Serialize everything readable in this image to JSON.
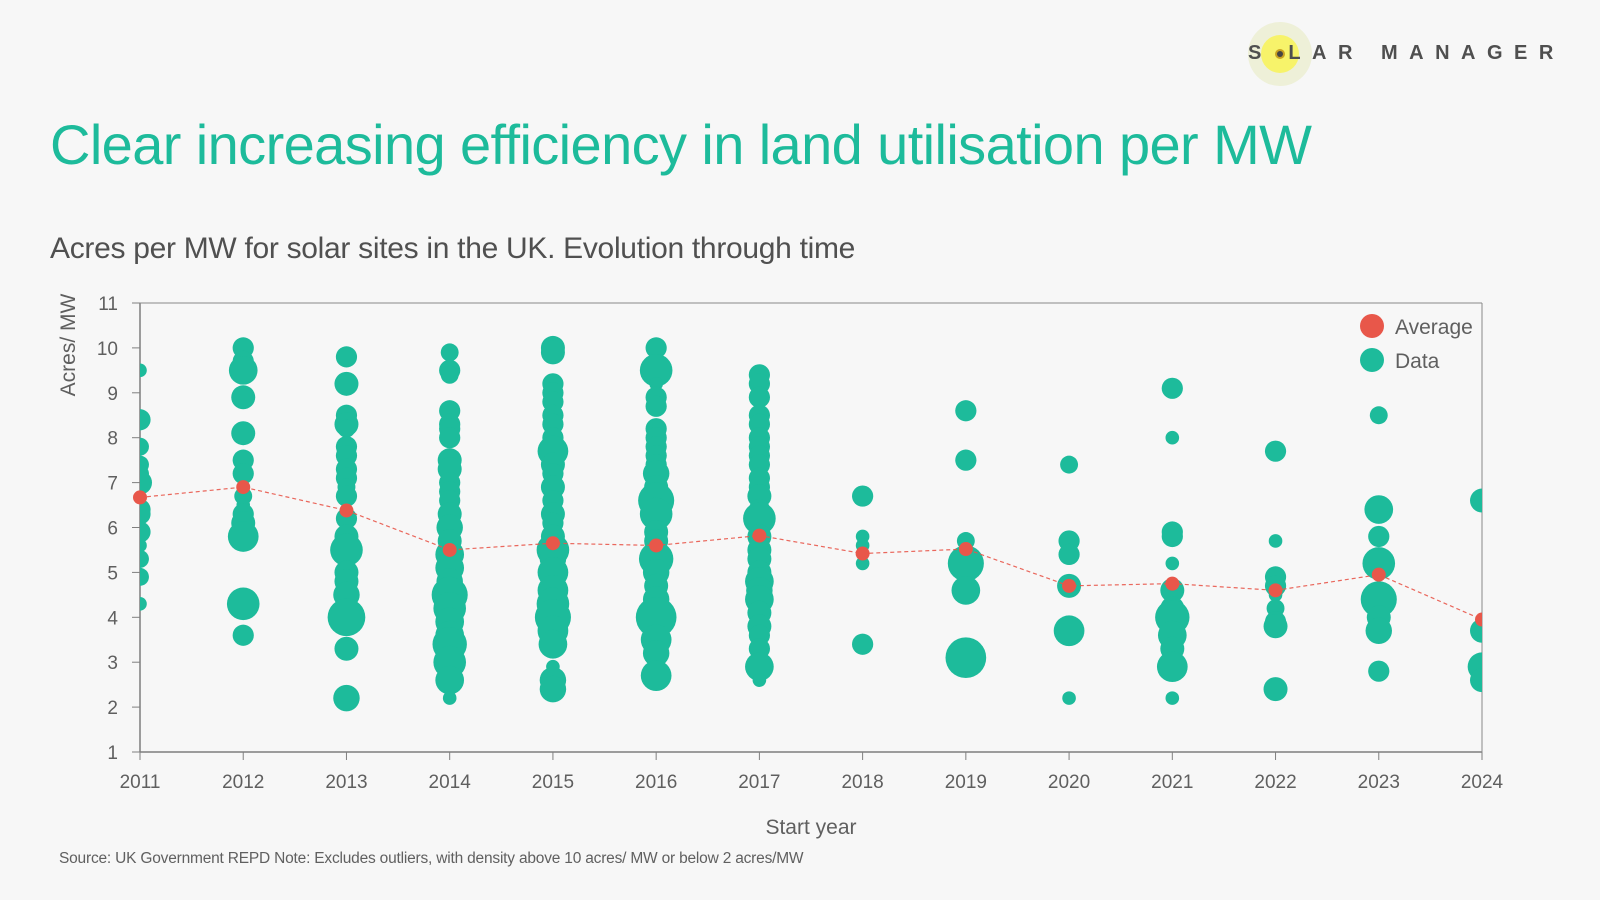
{
  "brand": {
    "logo_text": "S LAR MANAGER",
    "logo_text_full": "SOLAR MANAGER"
  },
  "header": {
    "title": "Clear increasing efficiency in land utilisation per MW",
    "subtitle": "Acres per MW for solar sites in the UK. Evolution through time"
  },
  "footer": {
    "source": "Source: UK Government REPD Note: Excludes outliers, with density above 10 acres/ MW or  below 2 acres/MW"
  },
  "colors": {
    "accent": "#1dbb9b",
    "average": "#e8574a",
    "text": "#5f5f5f",
    "axis": "#7f7f7f"
  },
  "chart_data": {
    "type": "scatter",
    "title": "Acres per MW for solar sites in the UK. Evolution through time",
    "xlabel": "Start year",
    "ylabel": "Acres/ MW",
    "xlim": [
      2011,
      2024
    ],
    "ylim": [
      1,
      11
    ],
    "x_ticks": [
      "2011",
      "2012",
      "2013",
      "2014",
      "2015",
      "2016",
      "2017",
      "2018",
      "2019",
      "2020",
      "2021",
      "2022",
      "2023",
      "2024"
    ],
    "y_ticks": [
      "1",
      "2",
      "3",
      "4",
      "5",
      "6",
      "7",
      "8",
      "9",
      "10",
      "11"
    ],
    "grid": false,
    "legend": {
      "position": "top-right",
      "entries": [
        "Average",
        "Data"
      ]
    },
    "series": [
      {
        "name": "Average",
        "kind": "line-dashed-with-markers",
        "points": [
          [
            2011,
            6.67
          ],
          [
            2012,
            6.9
          ],
          [
            2013,
            6.38
          ],
          [
            2014,
            5.5
          ],
          [
            2015,
            5.65
          ],
          [
            2016,
            5.6
          ],
          [
            2017,
            5.82
          ],
          [
            2018,
            5.42
          ],
          [
            2019,
            5.52
          ],
          [
            2020,
            4.7
          ],
          [
            2021,
            4.75
          ],
          [
            2022,
            4.6
          ],
          [
            2023,
            4.95
          ],
          [
            2024,
            3.95
          ]
        ]
      },
      {
        "name": "Data",
        "kind": "bubble",
        "size_note": "bubble area relative to site capacity (relative units)",
        "points": [
          [
            2011,
            9.5,
            1
          ],
          [
            2011,
            8.4,
            3
          ],
          [
            2011,
            7.8,
            2
          ],
          [
            2011,
            7.4,
            2
          ],
          [
            2011,
            7.2,
            2
          ],
          [
            2011,
            7.0,
            4
          ],
          [
            2011,
            6.4,
            3
          ],
          [
            2011,
            6.3,
            3
          ],
          [
            2011,
            5.9,
            3
          ],
          [
            2011,
            5.6,
            1
          ],
          [
            2011,
            5.3,
            2
          ],
          [
            2011,
            4.9,
            2
          ],
          [
            2011,
            4.3,
            1
          ],
          [
            2012,
            10.0,
            3
          ],
          [
            2012,
            9.7,
            3
          ],
          [
            2012,
            9.5,
            6
          ],
          [
            2012,
            8.9,
            4
          ],
          [
            2012,
            8.1,
            4
          ],
          [
            2012,
            7.5,
            3
          ],
          [
            2012,
            7.2,
            3
          ],
          [
            2012,
            6.7,
            2
          ],
          [
            2012,
            6.5,
            1
          ],
          [
            2012,
            6.3,
            3
          ],
          [
            2012,
            6.1,
            4
          ],
          [
            2012,
            5.8,
            7
          ],
          [
            2012,
            4.3,
            8
          ],
          [
            2012,
            3.6,
            3
          ],
          [
            2013,
            9.8,
            3
          ],
          [
            2013,
            9.2,
            4
          ],
          [
            2013,
            8.5,
            3
          ],
          [
            2013,
            8.3,
            4
          ],
          [
            2013,
            8.2,
            2
          ],
          [
            2013,
            7.8,
            3
          ],
          [
            2013,
            7.6,
            3
          ],
          [
            2013,
            7.3,
            3
          ],
          [
            2013,
            7.1,
            3
          ],
          [
            2013,
            6.9,
            2
          ],
          [
            2013,
            6.7,
            3
          ],
          [
            2013,
            6.2,
            3
          ],
          [
            2013,
            5.8,
            4
          ],
          [
            2013,
            5.5,
            8
          ],
          [
            2013,
            5.0,
            4
          ],
          [
            2013,
            4.8,
            4
          ],
          [
            2013,
            4.5,
            5
          ],
          [
            2013,
            4.0,
            11
          ],
          [
            2013,
            3.3,
            4
          ],
          [
            2013,
            2.2,
            5
          ],
          [
            2014,
            9.9,
            2
          ],
          [
            2014,
            9.5,
            3
          ],
          [
            2014,
            9.4,
            2
          ],
          [
            2014,
            8.6,
            3
          ],
          [
            2014,
            8.3,
            3
          ],
          [
            2014,
            8.2,
            3
          ],
          [
            2014,
            8.0,
            3
          ],
          [
            2014,
            7.5,
            4
          ],
          [
            2014,
            7.3,
            4
          ],
          [
            2014,
            7.0,
            3
          ],
          [
            2014,
            6.8,
            3
          ],
          [
            2014,
            6.6,
            3
          ],
          [
            2014,
            6.3,
            4
          ],
          [
            2014,
            6.0,
            5
          ],
          [
            2014,
            5.7,
            4
          ],
          [
            2014,
            5.4,
            6
          ],
          [
            2014,
            5.1,
            6
          ],
          [
            2014,
            4.8,
            5
          ],
          [
            2014,
            4.5,
            10
          ],
          [
            2014,
            4.2,
            8
          ],
          [
            2014,
            3.9,
            6
          ],
          [
            2014,
            3.6,
            6
          ],
          [
            2014,
            3.4,
            9
          ],
          [
            2014,
            3.0,
            8
          ],
          [
            2014,
            2.6,
            6
          ],
          [
            2014,
            2.2,
            1
          ],
          [
            2015,
            10.0,
            4
          ],
          [
            2015,
            9.9,
            4
          ],
          [
            2015,
            9.2,
            3
          ],
          [
            2015,
            9.0,
            3
          ],
          [
            2015,
            8.8,
            3
          ],
          [
            2015,
            8.5,
            3
          ],
          [
            2015,
            8.3,
            3
          ],
          [
            2015,
            8.0,
            3
          ],
          [
            2015,
            7.7,
            7
          ],
          [
            2015,
            7.4,
            4
          ],
          [
            2015,
            7.2,
            3
          ],
          [
            2015,
            6.9,
            4
          ],
          [
            2015,
            6.6,
            3
          ],
          [
            2015,
            6.3,
            4
          ],
          [
            2015,
            6.1,
            3
          ],
          [
            2015,
            5.8,
            4
          ],
          [
            2015,
            5.5,
            8
          ],
          [
            2015,
            5.3,
            5
          ],
          [
            2015,
            5.0,
            7
          ],
          [
            2015,
            4.6,
            7
          ],
          [
            2015,
            4.3,
            8
          ],
          [
            2015,
            4.0,
            10
          ],
          [
            2015,
            3.7,
            7
          ],
          [
            2015,
            3.4,
            6
          ],
          [
            2015,
            2.9,
            1
          ],
          [
            2015,
            2.6,
            5
          ],
          [
            2015,
            2.4,
            5
          ],
          [
            2016,
            10.0,
            3
          ],
          [
            2016,
            9.5,
            8
          ],
          [
            2016,
            9.2,
            1
          ],
          [
            2016,
            8.9,
            3
          ],
          [
            2016,
            8.7,
            3
          ],
          [
            2016,
            8.2,
            3
          ],
          [
            2016,
            8.0,
            3
          ],
          [
            2016,
            7.8,
            3
          ],
          [
            2016,
            7.6,
            3
          ],
          [
            2016,
            7.4,
            3
          ],
          [
            2016,
            7.2,
            5
          ],
          [
            2016,
            6.9,
            4
          ],
          [
            2016,
            6.6,
            10
          ],
          [
            2016,
            6.3,
            8
          ],
          [
            2016,
            5.9,
            4
          ],
          [
            2016,
            5.7,
            4
          ],
          [
            2016,
            5.3,
            9
          ],
          [
            2016,
            5.0,
            5
          ],
          [
            2016,
            4.7,
            4
          ],
          [
            2016,
            4.4,
            5
          ],
          [
            2016,
            4.0,
            13
          ],
          [
            2016,
            3.5,
            7
          ],
          [
            2016,
            3.2,
            5
          ],
          [
            2016,
            2.7,
            7
          ],
          [
            2017,
            9.4,
            3
          ],
          [
            2017,
            9.2,
            3
          ],
          [
            2017,
            8.9,
            3
          ],
          [
            2017,
            8.5,
            3
          ],
          [
            2017,
            8.3,
            3
          ],
          [
            2017,
            8.0,
            3
          ],
          [
            2017,
            7.8,
            3
          ],
          [
            2017,
            7.6,
            3
          ],
          [
            2017,
            7.4,
            3
          ],
          [
            2017,
            7.1,
            3
          ],
          [
            2017,
            6.9,
            3
          ],
          [
            2017,
            6.7,
            4
          ],
          [
            2017,
            6.4,
            3
          ],
          [
            2017,
            6.2,
            8
          ],
          [
            2017,
            5.8,
            4
          ],
          [
            2017,
            5.5,
            4
          ],
          [
            2017,
            5.3,
            4
          ],
          [
            2017,
            5.0,
            4
          ],
          [
            2017,
            4.8,
            6
          ],
          [
            2017,
            4.6,
            5
          ],
          [
            2017,
            4.4,
            6
          ],
          [
            2017,
            4.1,
            4
          ],
          [
            2017,
            3.8,
            4
          ],
          [
            2017,
            3.6,
            3
          ],
          [
            2017,
            3.3,
            3
          ],
          [
            2017,
            2.9,
            6
          ],
          [
            2017,
            2.6,
            1
          ],
          [
            2018,
            6.7,
            3
          ],
          [
            2018,
            5.8,
            1
          ],
          [
            2018,
            5.6,
            1
          ],
          [
            2018,
            5.2,
            1
          ],
          [
            2018,
            3.4,
            3
          ],
          [
            2019,
            8.6,
            3
          ],
          [
            2019,
            7.5,
            3
          ],
          [
            2019,
            5.7,
            2
          ],
          [
            2019,
            5.2,
            10
          ],
          [
            2019,
            4.6,
            6
          ],
          [
            2019,
            3.1,
            13
          ],
          [
            2020,
            7.4,
            2
          ],
          [
            2020,
            5.7,
            3
          ],
          [
            2020,
            5.4,
            3
          ],
          [
            2020,
            4.7,
            4
          ],
          [
            2020,
            3.7,
            7
          ],
          [
            2020,
            2.2,
            1
          ],
          [
            2021,
            9.1,
            3
          ],
          [
            2021,
            8.0,
            1
          ],
          [
            2021,
            5.9,
            3
          ],
          [
            2021,
            5.8,
            3
          ],
          [
            2021,
            5.2,
            1
          ],
          [
            2021,
            4.6,
            4
          ],
          [
            2021,
            4.2,
            4
          ],
          [
            2021,
            4.0,
            9
          ],
          [
            2021,
            3.6,
            6
          ],
          [
            2021,
            3.3,
            4
          ],
          [
            2021,
            2.9,
            7
          ],
          [
            2021,
            2.2,
            1
          ],
          [
            2022,
            7.7,
            3
          ],
          [
            2022,
            5.7,
            1
          ],
          [
            2022,
            4.9,
            3
          ],
          [
            2022,
            4.7,
            3
          ],
          [
            2022,
            4.5,
            1
          ],
          [
            2022,
            4.2,
            2
          ],
          [
            2022,
            3.9,
            3
          ],
          [
            2022,
            3.8,
            4
          ],
          [
            2022,
            2.4,
            4
          ],
          [
            2023,
            8.5,
            2
          ],
          [
            2023,
            6.4,
            6
          ],
          [
            2023,
            5.8,
            3
          ],
          [
            2023,
            5.2,
            8
          ],
          [
            2023,
            4.4,
            10
          ],
          [
            2023,
            4.0,
            4
          ],
          [
            2023,
            3.7,
            5
          ],
          [
            2023,
            2.8,
            3
          ],
          [
            2024,
            6.6,
            4
          ],
          [
            2024,
            3.7,
            4
          ],
          [
            2024,
            2.9,
            6
          ],
          [
            2024,
            2.6,
            4
          ]
        ]
      }
    ]
  }
}
